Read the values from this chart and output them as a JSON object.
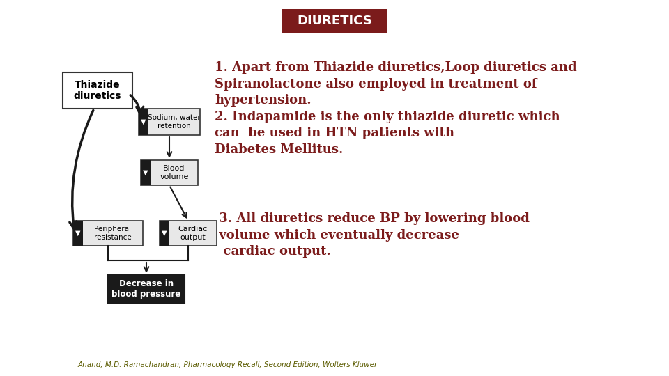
{
  "title": "DIURETICS",
  "title_bg": "#7B1B1B",
  "title_color": "#FFFFFF",
  "text_color": "#7B1B1B",
  "bg_color": "#FFFFFF",
  "text1": "1. Apart from Thiazide diuretics,Loop diuretics and\nSpiranolactone also employed in treatment of\nhypertension.\n2. Indapamide is the only thiazide diuretic which\ncan  be used in HTN patients with\nDiabetes Mellitus.",
  "text2": " 3. All diuretics reduce BP by lowering blood\n volume which eventually decrease\n  cardiac output.",
  "footer": "Anand, M.D. Ramachandran, Pharmacology Recall, Second Edition, Wolters Kluwer",
  "footer_color": "#5B5B00",
  "text_fontsize": 13,
  "title_fontsize": 13
}
